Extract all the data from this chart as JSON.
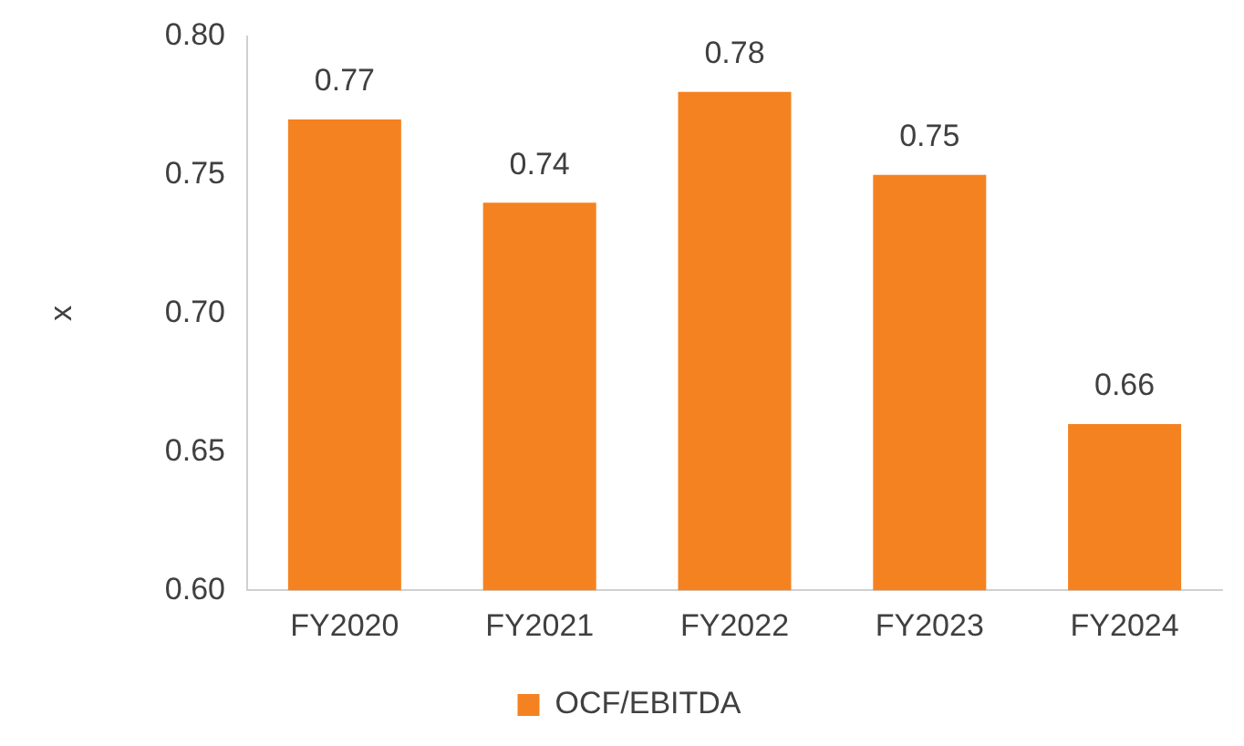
{
  "chart_data": {
    "type": "bar",
    "ylabel": "x",
    "categories": [
      "FY2020",
      "FY2021",
      "FY2022",
      "FY2023",
      "FY2024"
    ],
    "series": [
      {
        "name": "OCF/EBITDA",
        "color": "#f58220",
        "values": [
          0.77,
          0.74,
          0.78,
          0.75,
          0.66
        ]
      }
    ],
    "ylim": [
      0.6,
      0.8
    ],
    "yticks": [
      {
        "value": 0.6,
        "label": "0.60"
      },
      {
        "value": 0.65,
        "label": "0.65"
      },
      {
        "value": 0.7,
        "label": "0.70"
      },
      {
        "value": 0.75,
        "label": "0.75"
      },
      {
        "value": 0.8,
        "label": "0.80"
      }
    ],
    "grid": false,
    "legend": "bottom",
    "data_labels": true
  }
}
